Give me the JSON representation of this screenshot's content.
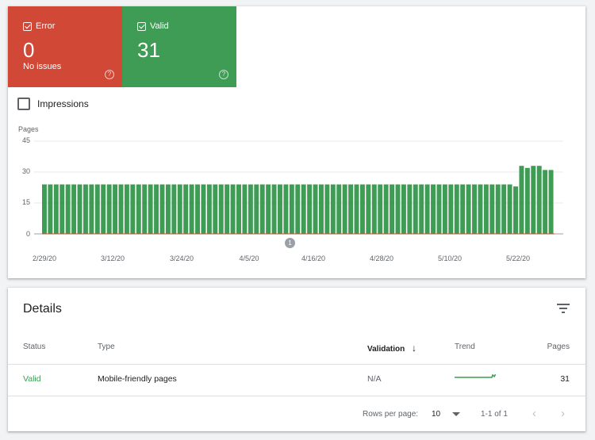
{
  "tiles": {
    "error": {
      "label": "Error",
      "count": "0",
      "sub": "No issues",
      "color": "#d14836"
    },
    "valid": {
      "label": "Valid",
      "count": "31",
      "color": "#3f9c55"
    }
  },
  "impressions_label": "Impressions",
  "chart_data": {
    "type": "bar",
    "ylabel": "Pages",
    "ylim": [
      0,
      45
    ],
    "yticks": [
      "45",
      "30",
      "15",
      "0"
    ],
    "xticks": [
      "2/29/20",
      "3/12/20",
      "3/24/20",
      "4/5/20",
      "4/16/20",
      "4/28/20",
      "5/10/20",
      "5/22/20"
    ],
    "series": [
      {
        "color": "#3f9c55",
        "values": [
          24,
          24,
          24,
          24,
          24,
          24,
          24,
          24,
          24,
          24,
          24,
          24,
          24,
          24,
          24,
          24,
          24,
          24,
          24,
          24,
          24,
          24,
          24,
          24,
          24,
          24,
          24,
          24,
          24,
          24,
          24,
          24,
          24,
          24,
          24,
          24,
          24,
          24,
          24,
          24,
          24,
          24,
          24,
          24,
          24,
          24,
          24,
          24,
          24,
          24,
          24,
          24,
          24,
          24,
          24,
          24,
          24,
          24,
          24,
          24,
          24,
          24,
          24,
          24,
          24,
          24,
          24,
          24,
          24,
          24,
          24,
          24,
          24,
          24,
          24,
          24,
          24,
          24,
          24,
          24,
          23,
          33,
          32,
          33,
          33,
          31,
          31
        ]
      }
    ],
    "annotation": "1"
  },
  "details": {
    "title": "Details",
    "columns": {
      "status": "Status",
      "type": "Type",
      "validation": "Validation",
      "trend": "Trend",
      "pages": "Pages"
    },
    "row": {
      "status": "Valid",
      "type": "Mobile-friendly pages",
      "validation": "N/A",
      "pages": "31"
    },
    "pagination": {
      "rows_label": "Rows per page:",
      "rows_value": "10",
      "range": "1-1 of 1"
    }
  }
}
